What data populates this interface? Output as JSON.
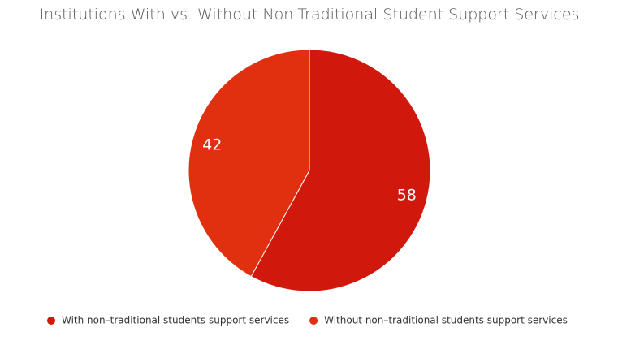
{
  "chart_data": {
    "type": "pie",
    "title": "Institutions With vs. Without Non-Traditional Student Support Services",
    "categories": [
      "With non–traditional students support services",
      "Without non–traditional students support services"
    ],
    "values": [
      58,
      42
    ],
    "colors": [
      "#d0190c",
      "#e1300f"
    ],
    "legend": "bottom"
  }
}
